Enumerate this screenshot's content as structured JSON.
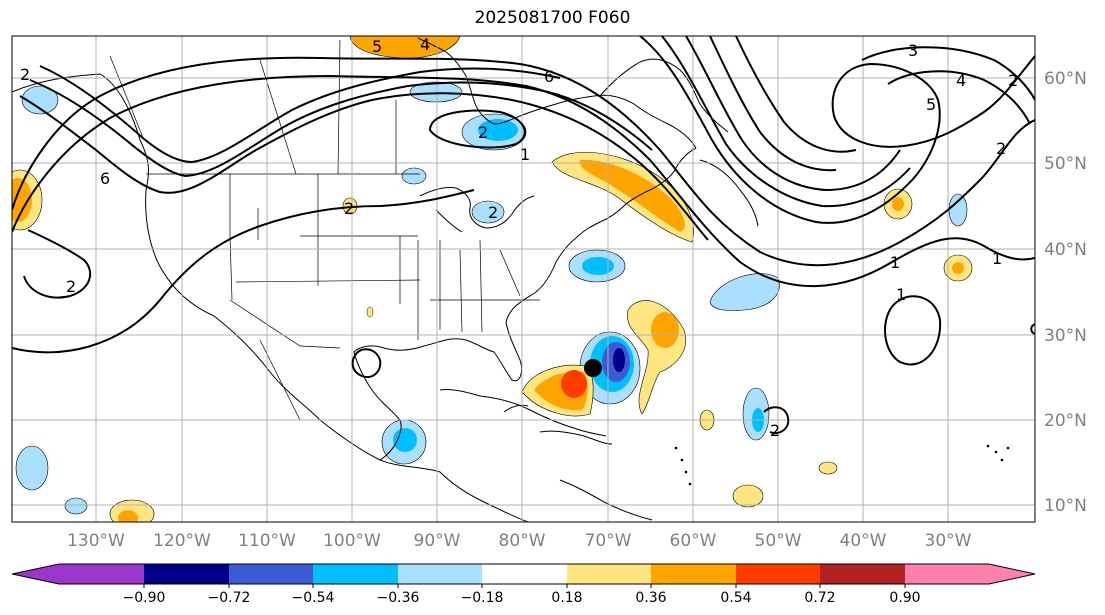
{
  "title": "2025081700 F060",
  "map": {
    "projection": "Mercator",
    "extent": {
      "lon": [
        -138,
        -17
      ],
      "lat": [
        8,
        65
      ]
    },
    "gridlines": true,
    "lon_labels": [
      "130°W",
      "120°W",
      "110°W",
      "100°W",
      "90°W",
      "80°W",
      "70°W",
      "60°W",
      "50°W",
      "40°W",
      "30°W"
    ],
    "lat_labels": [
      "60°N",
      "50°N",
      "40°N",
      "30°N",
      "20°N",
      "10°N"
    ],
    "contour_labels": [
      "5",
      "4",
      "6",
      "2",
      "1",
      "2",
      "6",
      "2",
      "2",
      "2",
      "3",
      "4",
      "5",
      "2",
      "1",
      "1",
      "1",
      "2",
      "2"
    ],
    "marker": "storm-center-dot"
  },
  "colorbar": {
    "ticks": [
      "−0.90",
      "−0.72",
      "−0.54",
      "−0.36",
      "−0.18",
      "0.18",
      "0.36",
      "0.54",
      "0.72",
      "0.90"
    ],
    "colors": [
      "#9a36cc",
      "#00008b",
      "#3b5bd4",
      "#00bfff",
      "#abdfff",
      "#ffffff",
      "#ffe680",
      "#ffa500",
      "#ff3b00",
      "#b22222",
      "#ff80aa"
    ],
    "extend": "both"
  }
}
